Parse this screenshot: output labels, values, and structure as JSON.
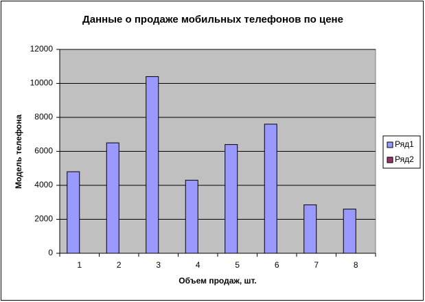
{
  "chart_data": {
    "type": "bar",
    "title": "Данные о продаже мобильных телефонов по цене",
    "x_label": "Объем продаж, шт.",
    "y_label": "Модель телефона",
    "categories": [
      "1",
      "2",
      "3",
      "4",
      "5",
      "6",
      "7",
      "8"
    ],
    "series": [
      {
        "name": "Ряд1",
        "color": "#9999ff",
        "values": [
          4800,
          6500,
          10400,
          4300,
          6400,
          7600,
          2850,
          2600
        ]
      },
      {
        "name": "Ряд2",
        "color": "#993366",
        "values": [
          null,
          null,
          null,
          null,
          null,
          null,
          null,
          null
        ]
      }
    ],
    "ylim": [
      0,
      12000
    ],
    "yticks": [
      0,
      2000,
      4000,
      6000,
      8000,
      10000,
      12000
    ],
    "grid": true,
    "legend": "right"
  }
}
